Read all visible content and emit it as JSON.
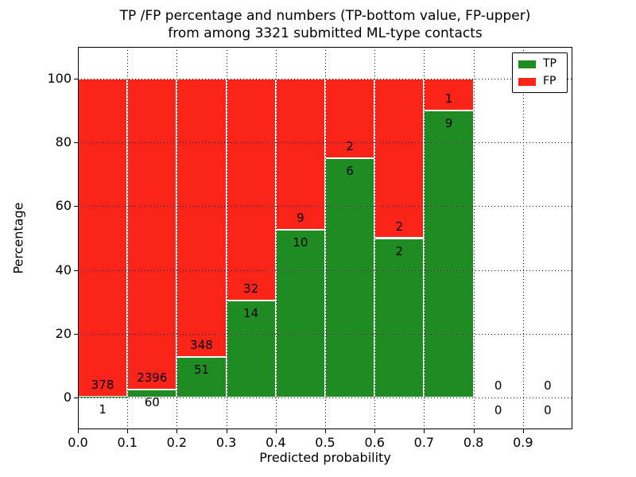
{
  "figure": {
    "title_line1": "TP /FP percentage and numbers (TP-bottom value, FP-upper)",
    "title_line2": "from among 3321 submitted ML-type contacts",
    "total_submitted": 3321,
    "xlabel": "Predicted probability",
    "ylabel": "Percentage"
  },
  "legend": {
    "position": "upper right",
    "items": [
      {
        "label": "TP",
        "color": "#1e8c22"
      },
      {
        "label": "FP",
        "color": "#fb2418"
      }
    ]
  },
  "chart_data": {
    "type": "bar",
    "stacked": true,
    "normalized": "each bar stacked to 100%; numbers annotate raw counts (TP bottom, FP upper)",
    "title": "TP /FP percentage and numbers (TP-bottom value, FP-upper)\nfrom among 3321 submitted ML-type contacts",
    "xlabel": "Predicted probability",
    "ylabel": "Percentage",
    "xlim": [
      0.0,
      1.0
    ],
    "ylim": [
      -10,
      110
    ],
    "grid": true,
    "legend_position": "upper right",
    "xticks": [
      "0.0",
      "0.1",
      "0.2",
      "0.3",
      "0.4",
      "0.5",
      "0.6",
      "0.7",
      "0.8",
      "0.9"
    ],
    "yticks": [
      0,
      20,
      40,
      60,
      80,
      100
    ],
    "series": [
      {
        "name": "TP",
        "color": "#1e8c22",
        "values": [
          1,
          60,
          51,
          14,
          10,
          6,
          2,
          9,
          0,
          0
        ]
      },
      {
        "name": "FP",
        "color": "#fb2418",
        "values": [
          378,
          2396,
          348,
          32,
          9,
          2,
          2,
          1,
          0,
          0
        ]
      }
    ],
    "bins": [
      {
        "x_start": 0.0,
        "x_end": 0.1,
        "tp": 1,
        "fp": 378,
        "tp_pct": 0.26
      },
      {
        "x_start": 0.1,
        "x_end": 0.2,
        "tp": 60,
        "fp": 2396,
        "tp_pct": 2.44
      },
      {
        "x_start": 0.2,
        "x_end": 0.3,
        "tp": 51,
        "fp": 348,
        "tp_pct": 12.78
      },
      {
        "x_start": 0.3,
        "x_end": 0.4,
        "tp": 14,
        "fp": 32,
        "tp_pct": 30.43
      },
      {
        "x_start": 0.4,
        "x_end": 0.5,
        "tp": 10,
        "fp": 9,
        "tp_pct": 52.63
      },
      {
        "x_start": 0.5,
        "x_end": 0.6,
        "tp": 6,
        "fp": 2,
        "tp_pct": 75.0
      },
      {
        "x_start": 0.6,
        "x_end": 0.7,
        "tp": 2,
        "fp": 2,
        "tp_pct": 50.0
      },
      {
        "x_start": 0.7,
        "x_end": 0.8,
        "tp": 9,
        "fp": 1,
        "tp_pct": 90.0
      },
      {
        "x_start": 0.8,
        "x_end": 0.9,
        "tp": 0,
        "fp": 0,
        "tp_pct": null
      },
      {
        "x_start": 0.9,
        "x_end": 1.0,
        "tp": 0,
        "fp": 0,
        "tp_pct": null
      }
    ]
  }
}
